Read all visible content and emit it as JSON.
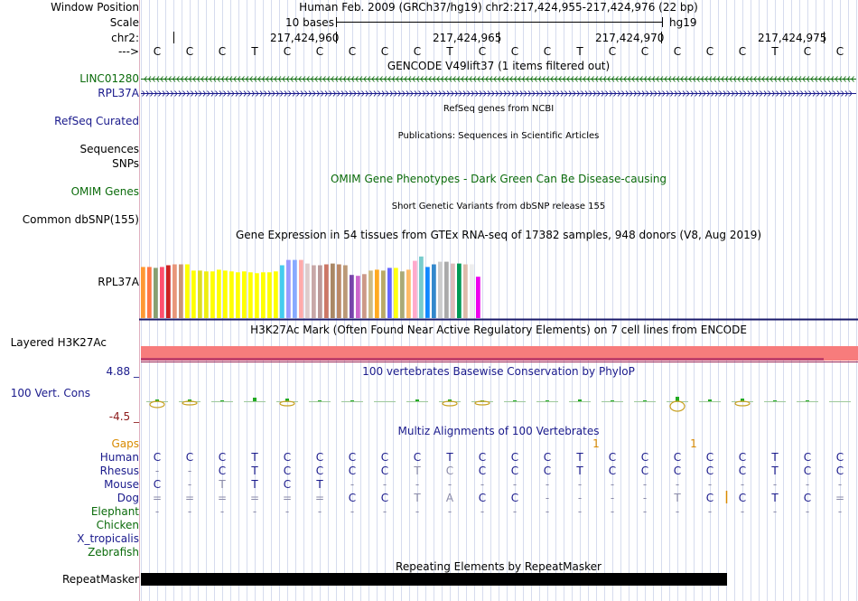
{
  "labels": {
    "window_position": "Window Position",
    "scale": "Scale",
    "chr": "chr2:",
    "strand_arrow": "--->",
    "linc": "LINC01280",
    "rpl37a": "RPL37A",
    "refseq": "RefSeq Curated",
    "sequences": "Sequences",
    "snps": "SNPs",
    "omim": "OMIM Genes",
    "dbsnp": "Common dbSNP(155)",
    "gtex_gene": "RPL37A",
    "h3k27ac": "Layered H3K27Ac",
    "cons_max": "4.88 _",
    "cons": "100 Vert. Cons",
    "cons_min": "-4.5 _",
    "gaps": "Gaps",
    "human": "Human",
    "rhesus": "Rhesus",
    "mouse": "Mouse",
    "dog": "Dog",
    "elephant": "Elephant",
    "chicken": "Chicken",
    "xtrop": "X_tropicalis",
    "zebrafish": "Zebrafish",
    "repeatmasker": "RepeatMasker"
  },
  "header": {
    "title": "Human Feb. 2009 (GRCh37/hg19)   chr2:217,424,955-217,424,976 (22 bp)",
    "scale_label": "10 bases",
    "assembly": "hg19",
    "coords": [
      "217,424,960",
      "217,424,965",
      "217,424,970",
      "217,424,975"
    ]
  },
  "sequence": [
    "C",
    "C",
    "C",
    "T",
    "C",
    "C",
    "C",
    "C",
    "C",
    "T",
    "C",
    "C",
    "C",
    "T",
    "C",
    "C",
    "C",
    "C",
    "C",
    "T",
    "C",
    "C"
  ],
  "tracks": {
    "gencode_title": "GENCODE V49lift37 (1 items filtered out)",
    "refseq_title": "RefSeq genes from NCBI",
    "pubs_title": "Publications: Sequences in Scientific Articles",
    "omim_title": "OMIM Gene Phenotypes - Dark Green Can Be Disease-causing",
    "dbsnp_title": "Short Genetic Variants from dbSNP release 155",
    "gtex_title": "Gene Expression in 54 tissues from GTEx RNA-seq of 17382 samples, 948 donors (V8, Aug 2019)",
    "h3k27ac_title": "H3K27Ac Mark (Often Found Near Active Regulatory Elements) on 7 cell lines from ENCODE",
    "phylop_title": "100 vertebrates Basewise Conservation by PhyloP",
    "multiz_title": "Multiz Alignments of 100 Vertebrates",
    "repeat_title": "Repeating Elements by RepeatMasker"
  },
  "gaps": [
    "",
    "",
    "",
    "",
    "",
    "",
    "",
    "",
    "",
    "",
    "",
    "",
    "",
    "",
    "1",
    "",
    "",
    "1",
    "",
    "",
    "",
    ""
  ],
  "alignment": {
    "human": [
      "C",
      "C",
      "C",
      "T",
      "C",
      "C",
      "C",
      "C",
      "C",
      "T",
      "C",
      "C",
      "C",
      "T",
      "C",
      "C",
      "C",
      "C",
      "C",
      "T",
      "C",
      "C"
    ],
    "rhesus": [
      "-",
      "-",
      "C",
      "T",
      "C",
      "C",
      "C",
      "C",
      "T",
      "C",
      "C",
      "C",
      "C",
      "T",
      "C",
      "C",
      "C",
      "C",
      "C",
      "T",
      "C",
      "C"
    ],
    "mouse": [
      "C",
      "-",
      "T",
      "T",
      "C",
      "T",
      "-",
      "-",
      "-",
      "-",
      "-",
      "-",
      "-",
      "-",
      "-",
      "-",
      "-",
      "-",
      "-",
      "-",
      "-",
      "-"
    ],
    "dog": [
      "=",
      "=",
      "=",
      "=",
      "=",
      "=",
      "C",
      "C",
      "T",
      "A",
      "C",
      "C",
      "-",
      "-",
      "-",
      "-",
      "T",
      "C",
      "C",
      "T",
      "C",
      "="
    ],
    "elephant": [
      "-",
      "-",
      "-",
      "-",
      "-",
      "-",
      "-",
      "-",
      "-",
      "-",
      "-",
      "-",
      "-",
      "-",
      "-",
      "-",
      "-",
      "-",
      "-",
      "-",
      "-",
      "-"
    ]
  },
  "alignment_faded": {
    "rhesus": [
      8,
      9
    ],
    "mouse": [
      2
    ],
    "dog": [
      8,
      9,
      16
    ]
  },
  "gtex_chart": {
    "tissues": 54,
    "values": [
      58,
      58,
      57,
      58,
      60,
      61,
      61,
      61,
      54,
      54,
      53,
      53,
      55,
      54,
      53,
      52,
      53,
      52,
      51,
      52,
      52,
      53,
      60,
      66,
      66,
      66,
      62,
      60,
      60,
      61,
      62,
      61,
      60,
      49,
      48,
      50,
      54,
      55,
      54,
      57,
      57,
      53,
      55,
      65,
      70,
      58,
      61,
      64,
      64,
      62,
      62,
      61,
      61,
      47
    ],
    "colors": [
      "#ff9933",
      "#ff7744",
      "#88a070",
      "#ff4f6f",
      "#cc2222",
      "#e8967a",
      "#c89478",
      "#ffff00",
      "#ffff00",
      "#dddd22",
      "#eeee11",
      "#ffff00",
      "#ffff00",
      "#ffff00",
      "#ffff00",
      "#ffff00",
      "#ffff00",
      "#ffff00",
      "#ffff00",
      "#ffff00",
      "#ffff00",
      "#ffff00",
      "#44ccee",
      "#9999ff",
      "#88aaff",
      "#ffaaaa",
      "#ddcccc",
      "#c8a8a8",
      "#bb9999",
      "#cc7766",
      "#aa8866",
      "#bb8866",
      "#bb9977",
      "#7744aa",
      "#cc66cc",
      "#cc9988",
      "#ccbb88",
      "#ffaa22",
      "#bbaa66",
      "#6666ff",
      "#ffff11",
      "#aaaa77",
      "#ffbb66",
      "#ffaacc",
      "#77cccc",
      "#1188ff",
      "#3388cc",
      "#cccccc",
      "#aaaaaa",
      "#ddbbbb",
      "#009955",
      "#ddbbaa",
      "#eeeeee",
      "#ee00ee"
    ],
    "ymax": 80
  },
  "colors": {
    "link_blue": "#1a1a8c",
    "gene_green": "#0b6b0b",
    "h3k27ac": "#f77c7c",
    "h3k27ac_dark": "#c0406a",
    "navy_line": "#1a1a6a"
  }
}
